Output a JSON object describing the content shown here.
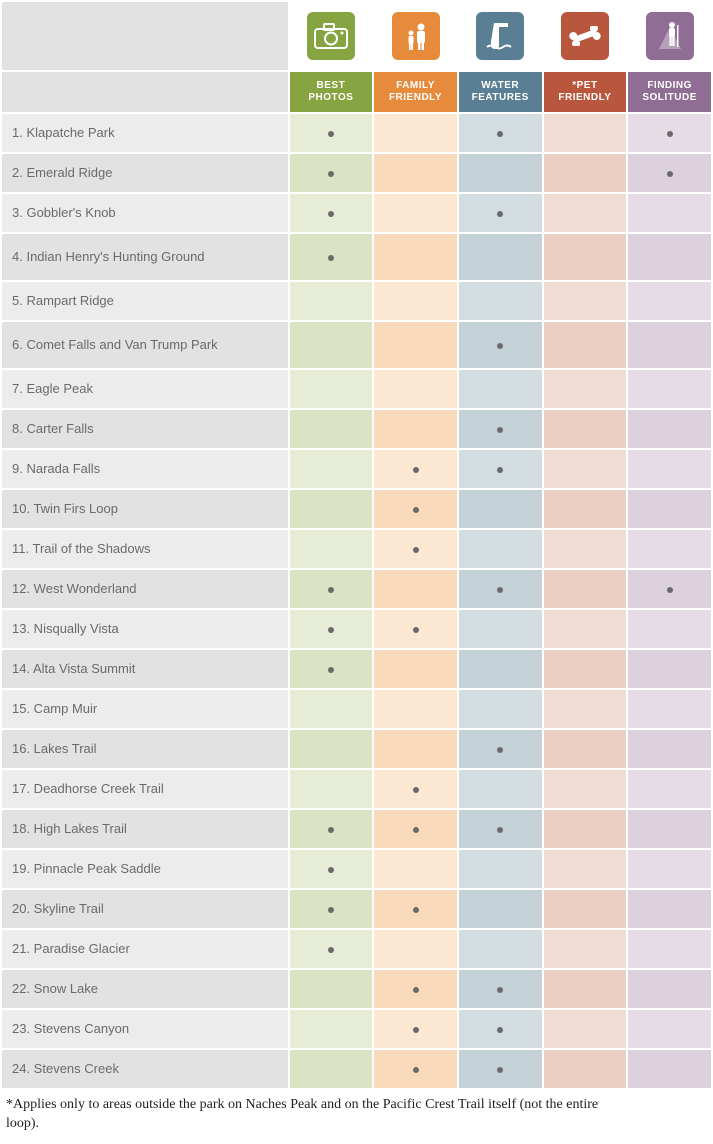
{
  "categories": [
    {
      "key": "best_photos",
      "label_l1": "BEST",
      "label_l2": "PHOTOS",
      "icon_bg": "#86a441",
      "header_bg": "#86a441",
      "body_light": "#e6ecd5",
      "body_dark": "#dbe3c5"
    },
    {
      "key": "family",
      "label_l1": "FAMILY",
      "label_l2": "FRIENDLY",
      "icon_bg": "#e68a3c",
      "header_bg": "#e68a3c",
      "body_light": "#fce7d2",
      "body_dark": "#f9dabd"
    },
    {
      "key": "water",
      "label_l1": "WATER",
      "label_l2": "FEATURES",
      "icon_bg": "#5a7f94",
      "header_bg": "#5a7f94",
      "body_light": "#d3dde1",
      "body_dark": "#c4d1d7"
    },
    {
      "key": "pet",
      "label_l1": "*PET",
      "label_l2": "FRIENDLY",
      "icon_bg": "#b9573e",
      "header_bg": "#b9573e",
      "body_light": "#f1dcd3",
      "body_dark": "#ebcfc3"
    },
    {
      "key": "solitude",
      "label_l1": "FINDING",
      "label_l2": "SOLITUDE",
      "icon_bg": "#8f6d94",
      "header_bg": "#8f6d94",
      "body_light": "#e6dce6",
      "body_dark": "#ddd0dd"
    }
  ],
  "row_label_light": "#ececec",
  "row_label_dark": "#e2e2e2",
  "trails": [
    {
      "num": "1.",
      "name": "Klapatche Park",
      "marks": {
        "best_photos": true,
        "family": false,
        "water": true,
        "pet": false,
        "solitude": true
      }
    },
    {
      "num": "2.",
      "name": "Emerald Ridge",
      "marks": {
        "best_photos": true,
        "family": false,
        "water": false,
        "pet": false,
        "solitude": true
      }
    },
    {
      "num": "3.",
      "name": "Gobbler's Knob",
      "marks": {
        "best_photos": true,
        "family": false,
        "water": true,
        "pet": false,
        "solitude": false
      }
    },
    {
      "num": "4.",
      "name": "Indian Henry's Hunting Ground",
      "marks": {
        "best_photos": true,
        "family": false,
        "water": false,
        "pet": false,
        "solitude": false
      },
      "tall": true
    },
    {
      "num": "5.",
      "name": "Rampart Ridge",
      "marks": {
        "best_photos": false,
        "family": false,
        "water": false,
        "pet": false,
        "solitude": false
      }
    },
    {
      "num": "6.",
      "name": "Comet Falls and Van Trump Park",
      "marks": {
        "best_photos": false,
        "family": false,
        "water": true,
        "pet": false,
        "solitude": false
      },
      "tall": true
    },
    {
      "num": "7.",
      "name": "Eagle Peak",
      "marks": {
        "best_photos": false,
        "family": false,
        "water": false,
        "pet": false,
        "solitude": false
      }
    },
    {
      "num": "8.",
      "name": "Carter Falls",
      "marks": {
        "best_photos": false,
        "family": false,
        "water": true,
        "pet": false,
        "solitude": false
      }
    },
    {
      "num": "9.",
      "name": "Narada Falls",
      "marks": {
        "best_photos": false,
        "family": true,
        "water": true,
        "pet": false,
        "solitude": false
      }
    },
    {
      "num": "10.",
      "name": "Twin Firs Loop",
      "marks": {
        "best_photos": false,
        "family": true,
        "water": false,
        "pet": false,
        "solitude": false
      }
    },
    {
      "num": "11.",
      "name": "Trail of the Shadows",
      "marks": {
        "best_photos": false,
        "family": true,
        "water": false,
        "pet": false,
        "solitude": false
      }
    },
    {
      "num": "12.",
      "name": "West Wonderland",
      "marks": {
        "best_photos": true,
        "family": false,
        "water": true,
        "pet": false,
        "solitude": true
      }
    },
    {
      "num": "13.",
      "name": "Nisqually Vista",
      "marks": {
        "best_photos": true,
        "family": true,
        "water": false,
        "pet": false,
        "solitude": false
      }
    },
    {
      "num": "14.",
      "name": "Alta Vista Summit",
      "marks": {
        "best_photos": true,
        "family": false,
        "water": false,
        "pet": false,
        "solitude": false
      }
    },
    {
      "num": "15.",
      "name": "Camp Muir",
      "marks": {
        "best_photos": false,
        "family": false,
        "water": false,
        "pet": false,
        "solitude": false
      }
    },
    {
      "num": "16.",
      "name": "Lakes Trail",
      "marks": {
        "best_photos": false,
        "family": false,
        "water": true,
        "pet": false,
        "solitude": false
      }
    },
    {
      "num": "17.",
      "name": "Deadhorse Creek Trail",
      "marks": {
        "best_photos": false,
        "family": true,
        "water": false,
        "pet": false,
        "solitude": false
      }
    },
    {
      "num": "18.",
      "name": "High Lakes Trail",
      "marks": {
        "best_photos": true,
        "family": true,
        "water": true,
        "pet": false,
        "solitude": false
      }
    },
    {
      "num": "19.",
      "name": "Pinnacle Peak Saddle",
      "marks": {
        "best_photos": true,
        "family": false,
        "water": false,
        "pet": false,
        "solitude": false
      }
    },
    {
      "num": "20.",
      "name": "Skyline Trail",
      "marks": {
        "best_photos": true,
        "family": true,
        "water": false,
        "pet": false,
        "solitude": false
      }
    },
    {
      "num": "21.",
      "name": "Paradise Glacier",
      "marks": {
        "best_photos": true,
        "family": false,
        "water": false,
        "pet": false,
        "solitude": false
      }
    },
    {
      "num": "22.",
      "name": "Snow Lake",
      "marks": {
        "best_photos": false,
        "family": true,
        "water": true,
        "pet": false,
        "solitude": false
      }
    },
    {
      "num": "23.",
      "name": "Stevens Canyon",
      "marks": {
        "best_photos": false,
        "family": true,
        "water": true,
        "pet": false,
        "solitude": false
      }
    },
    {
      "num": "24.",
      "name": "Stevens Creek",
      "marks": {
        "best_photos": false,
        "family": true,
        "water": true,
        "pet": false,
        "solitude": false
      }
    }
  ],
  "footnote": "*Applies only to areas outside the park on Naches Peak and on the Pacific Crest Trail itself (not the entire loop).",
  "icons": {
    "best_photos": "camera-icon",
    "family": "family-icon",
    "water": "waterfall-icon",
    "pet": "bone-icon",
    "solitude": "hiker-icon"
  }
}
